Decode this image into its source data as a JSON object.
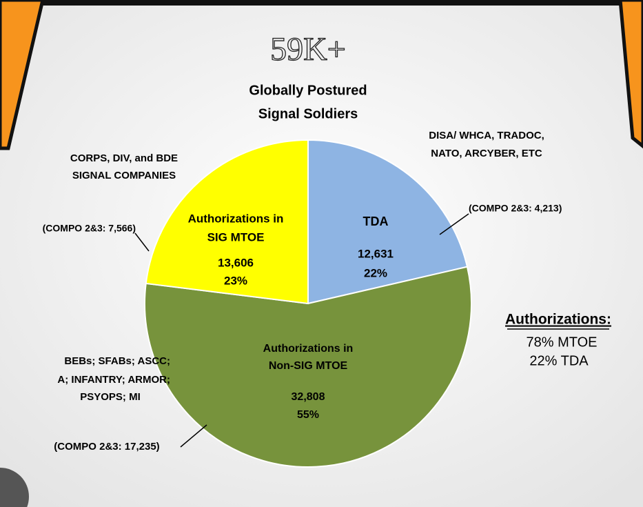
{
  "chart_data": {
    "type": "pie",
    "headline": "59K+",
    "title": [
      "Globally Postured",
      "Signal Soldiers"
    ],
    "categories": [
      [
        "TDA"
      ],
      [
        "Authorizations in",
        "Non-SIG MTOE"
      ],
      [
        "Authorizations in",
        "SIG MTOE"
      ]
    ],
    "values": [
      12631,
      32808,
      13606
    ],
    "value_labels": [
      "12,631",
      "32,808",
      "13,606"
    ],
    "percent_labels": [
      "22%",
      "55%",
      "23%"
    ],
    "colors": [
      "#8eb4e3",
      "#77933c",
      "#ffff00"
    ],
    "annotations": [
      {
        "lines": [
          "DISA/ WHCA, TRADOC,",
          "NATO, ARCYBER, ETC"
        ]
      },
      {
        "lines": [
          "(COMPO 2&3: 4,213)"
        ]
      },
      {
        "lines": [
          "CORPS, DIV, and BDE",
          "SIGNAL COMPANIES"
        ]
      },
      {
        "lines": [
          "(COMPO 2&3: 7,566)"
        ]
      },
      {
        "lines": [
          "BEBs; SFABs; ASCC;",
          "A; INFANTRY;  ARMOR;",
          "PSYOPS; MI"
        ]
      },
      {
        "lines": [
          "(COMPO 2&3: 17,235)"
        ]
      }
    ],
    "summary": {
      "title": "Authorizations:",
      "lines": [
        "78% MTOE",
        "22% TDA"
      ]
    }
  }
}
